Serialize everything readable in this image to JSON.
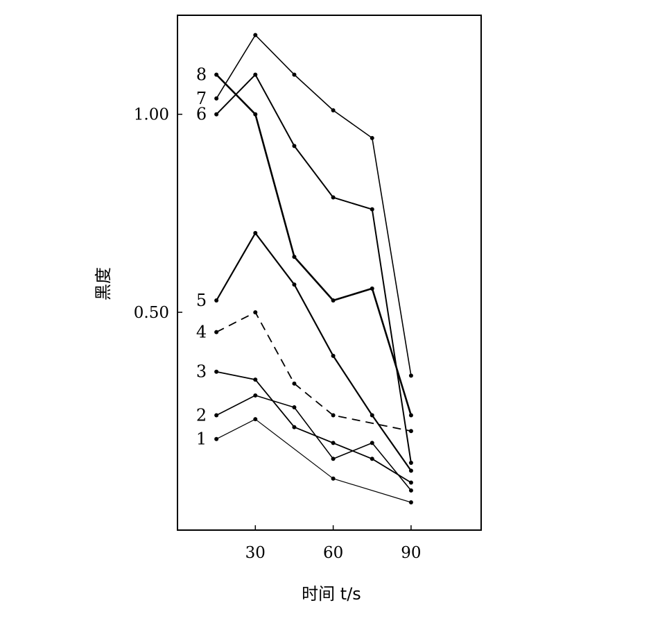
{
  "chart_data": {
    "type": "line",
    "title": "",
    "xlabel": "时间 t/s",
    "ylabel": "黑度",
    "xlim": [
      0,
      117
    ],
    "ylim": [
      -0.05,
      1.25
    ],
    "xticks": [
      "30",
      "60",
      "90"
    ],
    "yticks": [
      "1.00",
      "0.50"
    ],
    "grid": false,
    "series": [
      {
        "name": "1",
        "style": "solid",
        "x": [
          15,
          30,
          60,
          90
        ],
        "y": [
          0.18,
          0.23,
          0.08,
          0.02
        ]
      },
      {
        "name": "2",
        "style": "solid",
        "x": [
          15,
          30,
          45,
          60,
          75,
          90
        ],
        "y": [
          0.24,
          0.29,
          0.26,
          0.13,
          0.17,
          0.05
        ]
      },
      {
        "name": "3",
        "style": "solid",
        "x": [
          15,
          30,
          45,
          60,
          75,
          90
        ],
        "y": [
          0.35,
          0.33,
          0.21,
          0.17,
          0.13,
          0.07
        ]
      },
      {
        "name": "4",
        "style": "dashed",
        "x": [
          15,
          30,
          45,
          60,
          90
        ],
        "y": [
          0.45,
          0.5,
          0.32,
          0.24,
          0.2
        ]
      },
      {
        "name": "5",
        "style": "solid",
        "x": [
          15,
          30,
          45,
          60,
          75,
          90
        ],
        "y": [
          0.53,
          0.7,
          0.57,
          0.39,
          0.24,
          0.1
        ]
      },
      {
        "name": "6",
        "style": "solid",
        "x": [
          15,
          30,
          45,
          60,
          75,
          90
        ],
        "y": [
          1.0,
          1.1,
          0.92,
          0.79,
          0.76,
          0.12
        ]
      },
      {
        "name": "7",
        "style": "solid",
        "x": [
          15,
          30,
          45,
          60,
          75,
          90
        ],
        "y": [
          1.04,
          1.2,
          1.1,
          1.01,
          0.94,
          0.34
        ]
      },
      {
        "name": "8",
        "style": "solid",
        "x": [
          15,
          30,
          45,
          60,
          75,
          90
        ],
        "y": [
          1.1,
          1.0,
          0.64,
          0.53,
          0.56,
          0.24
        ]
      }
    ]
  }
}
